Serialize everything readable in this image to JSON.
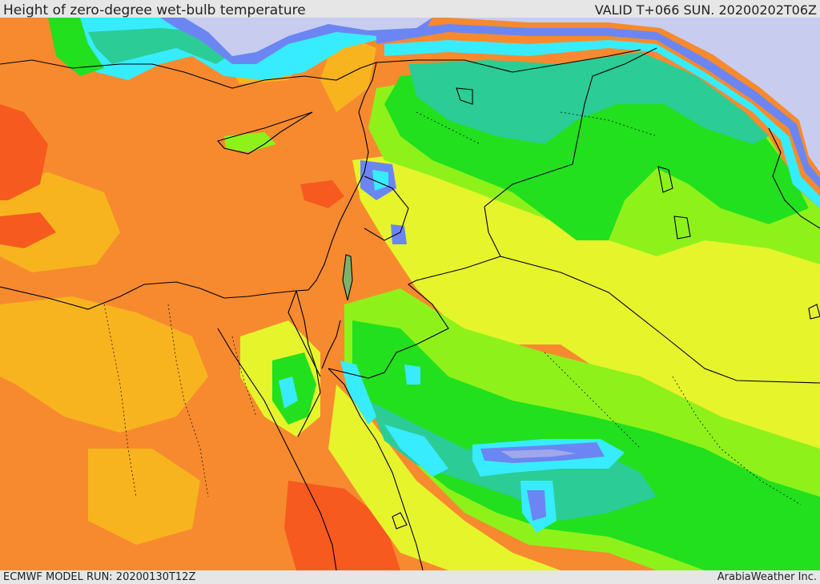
{
  "header": {
    "title": "Height of zero-degree wet-bulb temperature",
    "valid": "VALID T+066 SUN. 20200202T06Z"
  },
  "footer": {
    "model_run": "ECMWF MODEL RUN: 20200130T12Z",
    "credit": "ArabiaWeather Inc."
  },
  "palette": {
    "snow": "#c8cdf0",
    "lavender": "#a0a8ec",
    "blue": "#6b86f2",
    "cyan": "#38ecff",
    "teal": "#2bcc96",
    "green": "#22e01e",
    "lime": "#8ef21a",
    "yellow": "#e6f42c",
    "lightorange": "#f8b41e",
    "orange": "#f78a2e",
    "red": "#f65a1e",
    "border": "#000000"
  }
}
